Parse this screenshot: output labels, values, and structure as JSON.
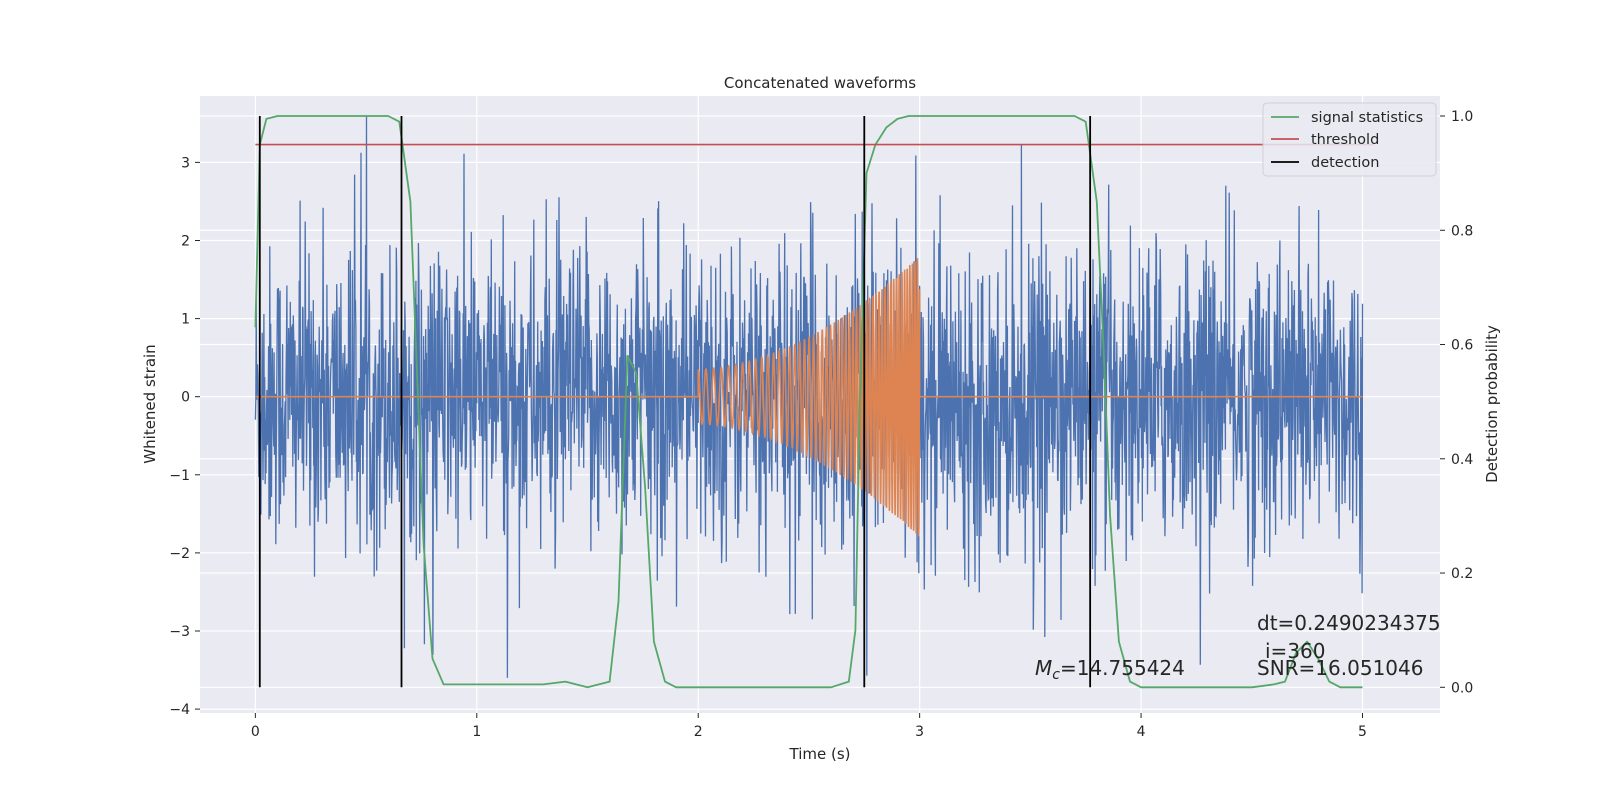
{
  "chart_data": {
    "type": "line",
    "title": "Concatenated waveforms",
    "xlabel": "Time (s)",
    "ylabel": "Whitened strain",
    "y2label": "Detection probability",
    "xlim": [
      -0.25,
      5.35
    ],
    "ylim": [
      -4.05,
      3.85
    ],
    "y2lim": [
      -0.045,
      1.035
    ],
    "x_ticks": [
      0,
      1,
      2,
      3,
      4,
      5
    ],
    "x_tick_labels": [
      "0",
      "1",
      "2",
      "3",
      "4",
      "5"
    ],
    "y_ticks": [
      -4,
      -3,
      -2,
      -1,
      0,
      1,
      2,
      3
    ],
    "y_tick_labels": [
      "−4",
      "−3",
      "−2",
      "−1",
      "0",
      "1",
      "2",
      "3"
    ],
    "y2_ticks": [
      0.0,
      0.2,
      0.4,
      0.6,
      0.8,
      1.0
    ],
    "y2_tick_labels": [
      "0.0",
      "0.2",
      "0.4",
      "0.6",
      "0.8",
      "1.0"
    ],
    "grid": true,
    "legend_position": "top-right",
    "noise": {
      "x_range": [
        0,
        5
      ],
      "typical_amplitude": 1.5,
      "peak_amplitude": 3.6,
      "color": "#4c72b0"
    },
    "injection": {
      "t_start": 2.0,
      "t_end": 3.0,
      "amp_start": 0.35,
      "amp_end": 1.8,
      "color": "#dd8452"
    },
    "series": [
      {
        "name": "signal statistics",
        "axis": "right",
        "color": "#55a868",
        "x": [
          0,
          0.02,
          0.05,
          0.1,
          0.15,
          0.6,
          0.65,
          0.7,
          0.73,
          0.76,
          0.8,
          0.85,
          1.3,
          1.4,
          1.5,
          1.6,
          1.64,
          1.68,
          1.72,
          1.76,
          1.8,
          1.85,
          1.9,
          2.0,
          2.6,
          2.68,
          2.71,
          2.73,
          2.76,
          2.8,
          2.85,
          2.9,
          2.95,
          3.0,
          3.7,
          3.75,
          3.8,
          3.83,
          3.86,
          3.9,
          3.95,
          4.0,
          4.5,
          4.6,
          4.65,
          4.7,
          4.75,
          4.8,
          4.85,
          4.9,
          5.0
        ],
        "y": [
          0.63,
          0.95,
          0.995,
          1.0,
          1.0,
          1.0,
          0.99,
          0.85,
          0.55,
          0.25,
          0.05,
          0.005,
          0.005,
          0.01,
          0.0,
          0.01,
          0.15,
          0.58,
          0.55,
          0.35,
          0.08,
          0.01,
          0.0,
          0.0,
          0.0,
          0.01,
          0.1,
          0.5,
          0.9,
          0.95,
          0.98,
          0.995,
          1.0,
          1.0,
          1.0,
          0.99,
          0.85,
          0.6,
          0.3,
          0.08,
          0.01,
          0.0,
          0.0,
          0.005,
          0.01,
          0.06,
          0.08,
          0.05,
          0.01,
          0.0,
          0.0
        ]
      },
      {
        "name": "threshold",
        "axis": "right",
        "color": "#c44e52",
        "x": [
          0,
          5.05
        ],
        "y": [
          0.95,
          0.95
        ]
      },
      {
        "name": "detection",
        "axis": "right",
        "color": "#000000",
        "vlines": [
          0.02,
          0.66,
          2.75,
          3.77
        ],
        "y_range": [
          0.0,
          1.0
        ]
      }
    ],
    "annotations": {
      "mc_label": "=14.755424",
      "dt_label": "dt=0.2490234375",
      "i_label": "i=360",
      "snr_label": "SNR=16.051046"
    }
  }
}
